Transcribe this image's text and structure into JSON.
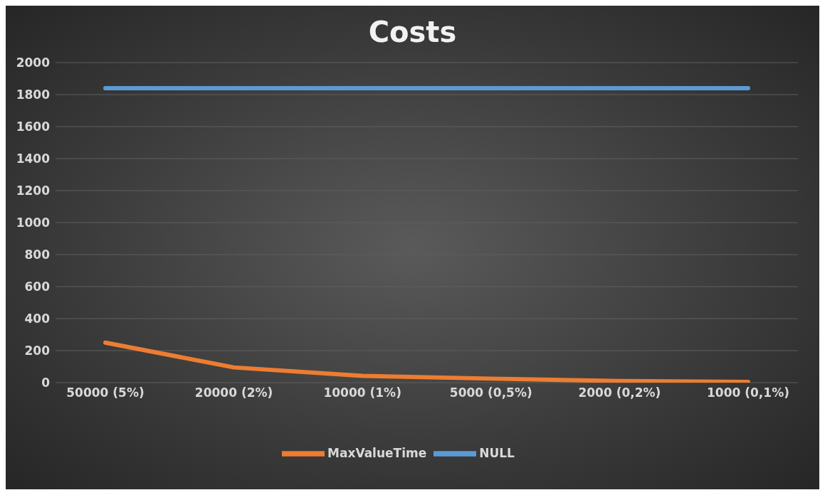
{
  "chart_data": {
    "type": "line",
    "title": "Costs",
    "categories": [
      "50000 (5%)",
      "20000  (2%)",
      "10000  (1%)",
      "5000 (0,5%)",
      "2000 (0,2%)",
      "1000 (0,1%)"
    ],
    "series": [
      {
        "name": "NULL",
        "color": "#5b9bd5",
        "values": [
          1840,
          1840,
          1840,
          1840,
          1840,
          1840
        ]
      },
      {
        "name": "MaxValueTime",
        "color": "#ed7d31",
        "values": [
          250,
          95,
          42,
          25,
          10,
          5
        ]
      }
    ],
    "ylim": [
      0,
      2000
    ],
    "yticks": [
      0,
      200,
      400,
      600,
      800,
      1000,
      1200,
      1400,
      1600,
      1800,
      2000
    ],
    "grid": "y",
    "legend": "bottom",
    "marker": "none",
    "line_style": "solid"
  }
}
